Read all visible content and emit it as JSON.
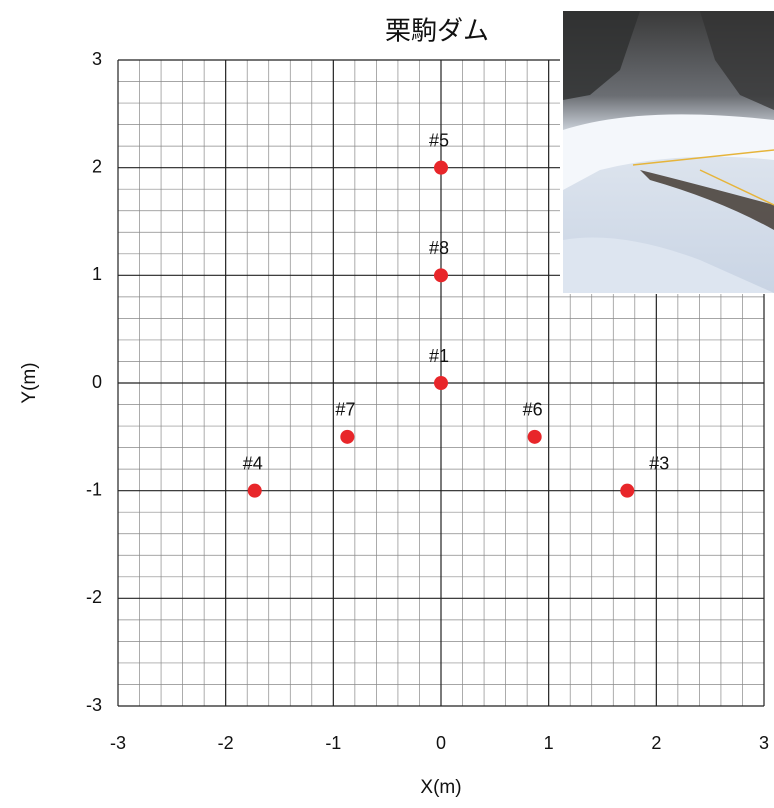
{
  "chart_data": {
    "type": "scatter",
    "title": "栗駒ダム",
    "x_label": "X(m)",
    "y_label": "Y(m)",
    "labels": [
      "#1",
      "#3",
      "#4",
      "#5",
      "#6",
      "#7",
      "#8"
    ],
    "x": [
      0,
      1.73,
      -1.73,
      0,
      0.87,
      -0.87,
      0
    ],
    "series": [
      {
        "color": "#e8262a",
        "values": [
          0,
          -1,
          -1,
          2,
          -0.5,
          -0.5,
          1
        ]
      }
    ],
    "xlim": [
      -3,
      3
    ],
    "ylim": [
      -3,
      3
    ],
    "xticks": [
      -3,
      -2,
      -1,
      0,
      1,
      2,
      3
    ],
    "yticks": [
      -3,
      -2,
      -1,
      0,
      1,
      2,
      3
    ],
    "grid": true
  }
}
